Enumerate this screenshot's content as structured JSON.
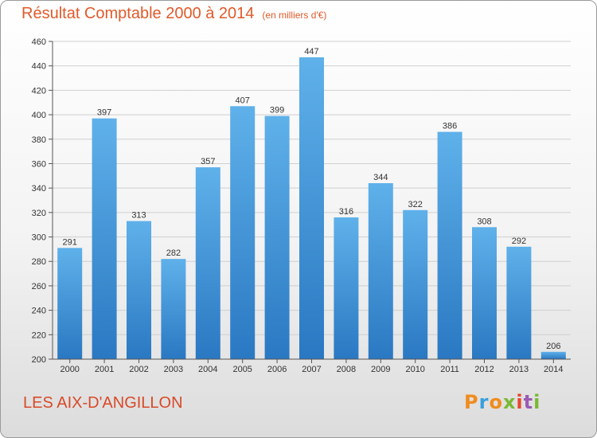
{
  "header": {
    "title": "Résultat Comptable 2000 à 2014",
    "unit": "(en milliers d'€)"
  },
  "footer": {
    "place": "LES AIX-D'ANGILLON",
    "logo": "Proxiti"
  },
  "chart_data": {
    "type": "bar",
    "title": "Résultat Comptable 2000 à 2014",
    "subtitle": "(en milliers d'€)",
    "categories": [
      "2000",
      "2001",
      "2002",
      "2003",
      "2004",
      "2005",
      "2006",
      "2007",
      "2008",
      "2009",
      "2010",
      "2011",
      "2012",
      "2013",
      "2014"
    ],
    "values": [
      291,
      397,
      313,
      282,
      357,
      407,
      399,
      447,
      316,
      344,
      322,
      386,
      308,
      292,
      206
    ],
    "ylim": [
      200,
      460
    ],
    "yticks": [
      200,
      220,
      240,
      260,
      280,
      300,
      320,
      340,
      360,
      380,
      400,
      420,
      440,
      460
    ],
    "grid": true,
    "data_labels": true,
    "bar_color": "#3f93d8",
    "xlabel": "",
    "ylabel": ""
  }
}
